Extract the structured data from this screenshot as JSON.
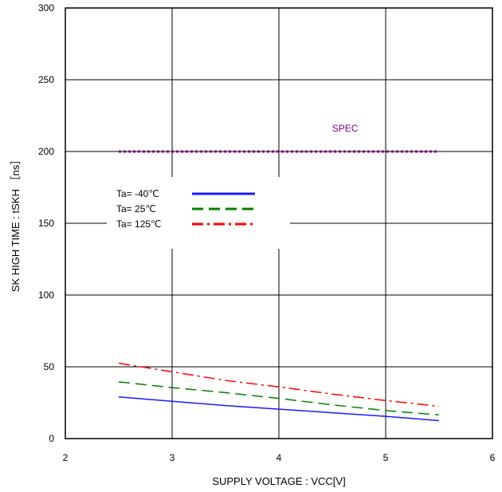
{
  "chart_data": {
    "type": "line",
    "title": "",
    "xlabel": "SUPPLY VOLTAGE : VCC[V]",
    "ylabel": "SK HIGH TIME : tSKH ［ns］",
    "xlim": [
      2,
      6
    ],
    "ylim": [
      0,
      300
    ],
    "xticks": [
      "2",
      "3",
      "4",
      "5",
      "6"
    ],
    "yticks": [
      "0",
      "50",
      "100",
      "150",
      "200",
      "250",
      "300"
    ],
    "grid": true,
    "legend_position": "upper-left",
    "series": [
      {
        "name": "Ta= -40℃",
        "color": "#1a1aff",
        "style": "solid",
        "x": [
          2.5,
          3.0,
          3.5,
          4.0,
          4.5,
          5.0,
          5.5
        ],
        "y": [
          29,
          26,
          23,
          20.5,
          18,
          15.5,
          12.5
        ]
      },
      {
        "name": "Ta=  25℃",
        "color": "#008000",
        "style": "dashed",
        "x": [
          2.5,
          3.0,
          3.5,
          4.0,
          4.5,
          5.0,
          5.5
        ],
        "y": [
          39.5,
          35.5,
          32,
          28,
          23.5,
          19.5,
          16.5
        ]
      },
      {
        "name": "Ta= 125℃",
        "color": "#ff0000",
        "style": "dashdot",
        "x": [
          2.5,
          3.0,
          3.5,
          4.0,
          4.5,
          5.0,
          5.5
        ],
        "y": [
          52.5,
          46.5,
          40.5,
          36,
          31,
          26.5,
          22.5
        ]
      }
    ],
    "spec": {
      "label": "SPEC",
      "value": 200,
      "x": [
        2.5,
        5.5
      ],
      "color": "#800080",
      "style": "dotted"
    }
  }
}
